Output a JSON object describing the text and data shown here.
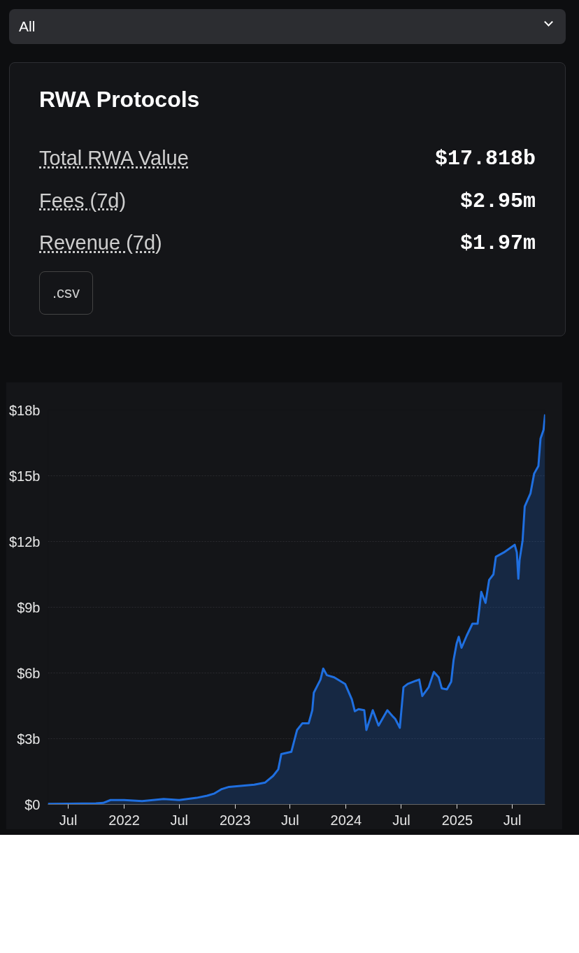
{
  "chart_data": {
    "type": "area",
    "title": "RWA Protocols",
    "annotations": [
      "All",
      "Total RWA Value",
      "$17.818b",
      "Fees (7d)",
      "$2.95m",
      "Revenue (7d)",
      "$1.97m",
      ".csv"
    ],
    "x": [
      "2021-04-25",
      "2021-07-01",
      "2021-09-30",
      "2021-10-24",
      "2021-11-17",
      "2022-01-01",
      "2022-03-01",
      "2022-05-11",
      "2022-07-01",
      "2022-08-27",
      "2022-10-01",
      "2022-10-25",
      "2022-11-18",
      "2022-12-12",
      "2023-03-05",
      "2023-04-10",
      "2023-05-06",
      "2023-05-23",
      "2023-06-02",
      "2023-07-05",
      "2023-07-24",
      "2023-08-10",
      "2023-08-31",
      "2023-09-12",
      "2023-09-17",
      "2023-10-09",
      "2023-10-18",
      "2023-10-30",
      "2023-11-23",
      "2023-12-29",
      "2024-01-20",
      "2024-01-30",
      "2024-02-11",
      "2024-03-01",
      "2024-03-08",
      "2024-03-29",
      "2024-04-17",
      "2024-05-16",
      "2024-06-04",
      "2024-06-11",
      "2024-06-26",
      "2024-07-08",
      "2024-07-22",
      "2024-08-19",
      "2024-08-29",
      "2024-09-08",
      "2024-09-29",
      "2024-10-16",
      "2024-11-01",
      "2024-11-11",
      "2024-11-28",
      "2024-12-12",
      "2024-12-20",
      "2024-12-30",
      "2025-01-06",
      "2025-01-15",
      "2025-02-01",
      "2025-02-20",
      "2025-03-09",
      "2025-03-21",
      "2025-04-04",
      "2025-04-16",
      "2025-04-30",
      "2025-05-08",
      "2025-06-03",
      "2025-07-09",
      "2025-07-16",
      "2025-07-21",
      "2025-07-25",
      "2025-08-04",
      "2025-08-11",
      "2025-08-30",
      "2025-09-11",
      "2025-09-25",
      "2025-10-02",
      "2025-10-12",
      "2025-10-17"
    ],
    "series": [
      {
        "color": "#1f6fe0",
        "values": [
          0.02,
          0.03,
          0.05,
          0.07,
          0.2,
          0.2,
          0.15,
          0.25,
          0.2,
          0.3,
          0.4,
          0.5,
          0.7,
          0.8,
          0.9,
          1.0,
          1.3,
          1.6,
          2.3,
          2.4,
          3.4,
          3.7,
          3.7,
          4.3,
          5.1,
          5.7,
          6.2,
          5.9,
          5.8,
          5.5,
          4.8,
          4.25,
          4.35,
          4.3,
          3.4,
          4.3,
          3.6,
          4.3,
          4.0,
          3.9,
          3.5,
          5.35,
          5.5,
          5.65,
          5.7,
          4.95,
          5.35,
          6.05,
          5.8,
          5.3,
          5.25,
          5.6,
          6.6,
          7.35,
          7.65,
          7.15,
          7.7,
          8.25,
          8.25,
          9.7,
          9.2,
          10.25,
          10.5,
          11.3,
          11.5,
          11.85,
          11.5,
          10.3,
          11.15,
          12.05,
          13.6,
          14.2,
          15.1,
          15.45,
          16.7,
          17.1,
          17.8
        ]
      }
    ],
    "xlim": [
      "2021-04-25",
      "2025-10-17"
    ],
    "xticks": [
      {
        "value": "2021-07-01",
        "label": "Jul"
      },
      {
        "value": "2022-01-01",
        "label": "2022"
      },
      {
        "value": "2022-07-01",
        "label": "Jul"
      },
      {
        "value": "2023-01-01",
        "label": "2023"
      },
      {
        "value": "2023-07-01",
        "label": "Jul"
      },
      {
        "value": "2024-01-01",
        "label": "2024"
      },
      {
        "value": "2024-07-01",
        "label": "Jul"
      },
      {
        "value": "2025-01-01",
        "label": "2025"
      },
      {
        "value": "2025-07-01",
        "label": "Jul"
      }
    ],
    "ylim": [
      0,
      18
    ],
    "yticks": [
      {
        "value": 0,
        "label": "$0"
      },
      {
        "value": 3,
        "label": "$3b"
      },
      {
        "value": 6,
        "label": "$6b"
      },
      {
        "value": 9,
        "label": "$9b"
      },
      {
        "value": 12,
        "label": "$12b"
      },
      {
        "value": 15,
        "label": "$15b"
      },
      {
        "value": 18,
        "label": "$18b"
      }
    ],
    "grid": "y",
    "line_style": "solid"
  }
}
